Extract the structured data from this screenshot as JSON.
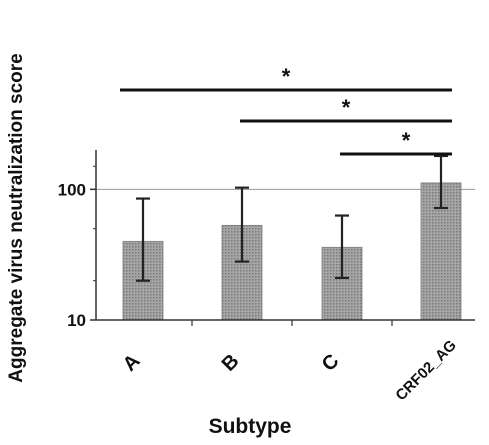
{
  "chart_data": {
    "type": "bar",
    "title": "",
    "xlabel": "Subtype",
    "ylabel": "Aggregate virus neutralization score",
    "yscale": "log",
    "ylim": [
      10,
      200
    ],
    "yticks": [
      10,
      100
    ],
    "ytick_labels": [
      "10",
      "100"
    ],
    "grid": "horizontal line at 100",
    "categories": [
      "A",
      "B",
      "C",
      "CRF02_AG"
    ],
    "values": [
      40,
      53,
      36,
      112
    ],
    "error_high": [
      85,
      103,
      63,
      180
    ],
    "error_low": [
      20,
      28,
      21,
      72
    ],
    "bar_color": "#9a9a9a",
    "significance": [
      {
        "from": "A",
        "to": "CRF02_AG",
        "label": "*"
      },
      {
        "from": "B",
        "to": "CRF02_AG",
        "label": "*"
      },
      {
        "from": "C",
        "to": "CRF02_AG",
        "label": "*"
      }
    ]
  }
}
